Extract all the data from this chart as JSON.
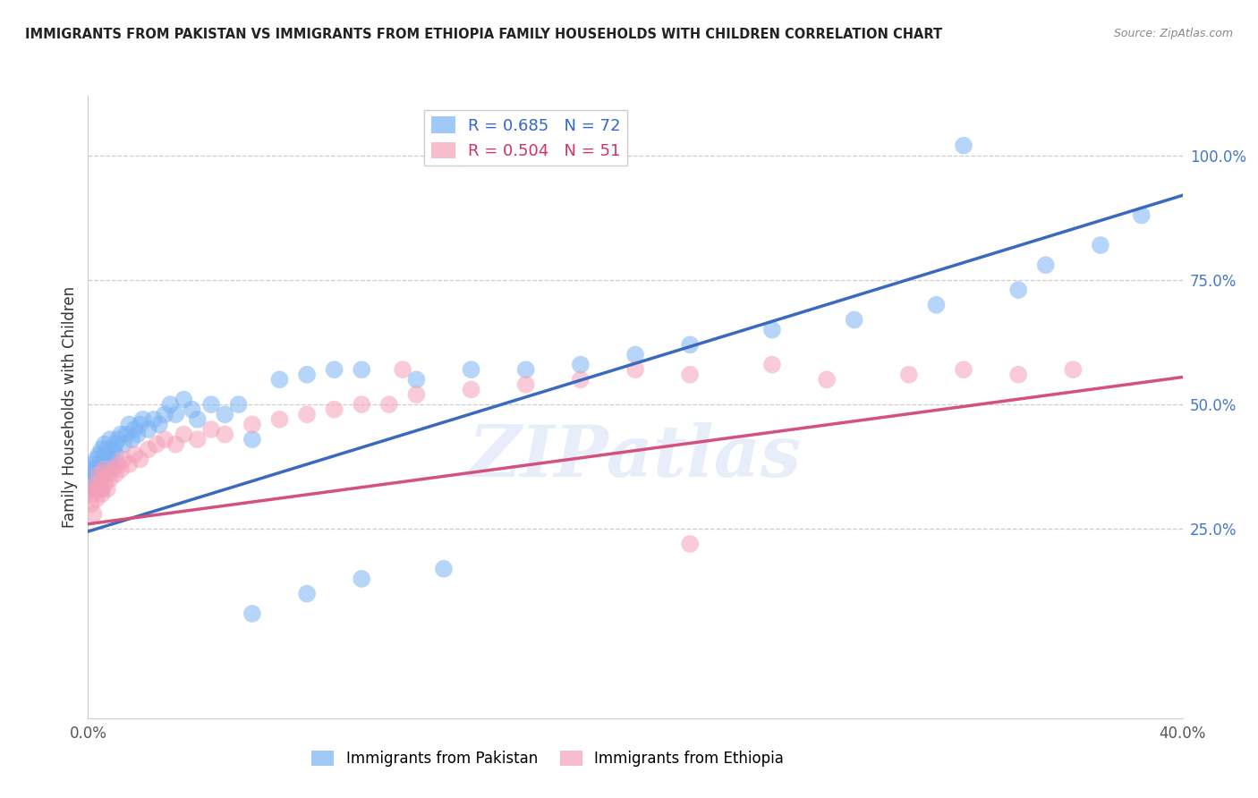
{
  "title": "IMMIGRANTS FROM PAKISTAN VS IMMIGRANTS FROM ETHIOPIA FAMILY HOUSEHOLDS WITH CHILDREN CORRELATION CHART",
  "source": "Source: ZipAtlas.com",
  "xlabel_pakistan": "Immigrants from Pakistan",
  "xlabel_ethiopia": "Immigrants from Ethiopia",
  "ylabel": "Family Households with Children",
  "xlim": [
    0.0,
    0.4
  ],
  "ylim": [
    -0.13,
    1.12
  ],
  "xticks": [
    0.0,
    0.08,
    0.16,
    0.24,
    0.32,
    0.4
  ],
  "xticklabels": [
    "0.0%",
    "",
    "",
    "",
    "",
    "40.0%"
  ],
  "yticks_right": [
    0.25,
    0.5,
    0.75,
    1.0
  ],
  "ytick_labels_right": [
    "25.0%",
    "50.0%",
    "75.0%",
    "100.0%"
  ],
  "pakistan_R": 0.685,
  "pakistan_N": 72,
  "ethiopia_R": 0.504,
  "ethiopia_N": 51,
  "pakistan_color": "#7ab3f5",
  "ethiopia_color": "#f5a0b8",
  "pakistan_line_color": "#3a6abf",
  "ethiopia_line_color": "#d45080",
  "watermark": "ZIPatlas",
  "pak_line_x0": 0.0,
  "pak_line_y0": 0.245,
  "pak_line_x1": 0.4,
  "pak_line_y1": 0.92,
  "eth_line_x0": 0.0,
  "eth_line_y0": 0.26,
  "eth_line_x1": 0.4,
  "eth_line_y1": 0.555,
  "pak_scatter_x": [
    0.001,
    0.001,
    0.002,
    0.002,
    0.002,
    0.003,
    0.003,
    0.003,
    0.004,
    0.004,
    0.004,
    0.005,
    0.005,
    0.005,
    0.005,
    0.006,
    0.006,
    0.006,
    0.007,
    0.007,
    0.008,
    0.008,
    0.008,
    0.009,
    0.009,
    0.01,
    0.01,
    0.011,
    0.012,
    0.013,
    0.014,
    0.015,
    0.016,
    0.017,
    0.018,
    0.019,
    0.02,
    0.022,
    0.024,
    0.026,
    0.028,
    0.03,
    0.032,
    0.035,
    0.038,
    0.04,
    0.045,
    0.05,
    0.055,
    0.06,
    0.07,
    0.08,
    0.09,
    0.1,
    0.12,
    0.14,
    0.16,
    0.18,
    0.2,
    0.22,
    0.25,
    0.28,
    0.31,
    0.32,
    0.34,
    0.35,
    0.37,
    0.385,
    0.06,
    0.08,
    0.1,
    0.13
  ],
  "pak_scatter_y": [
    0.34,
    0.37,
    0.35,
    0.38,
    0.33,
    0.36,
    0.39,
    0.37,
    0.35,
    0.4,
    0.38,
    0.36,
    0.41,
    0.38,
    0.33,
    0.4,
    0.37,
    0.42,
    0.38,
    0.41,
    0.39,
    0.43,
    0.37,
    0.41,
    0.38,
    0.42,
    0.4,
    0.43,
    0.44,
    0.42,
    0.44,
    0.46,
    0.43,
    0.45,
    0.44,
    0.46,
    0.47,
    0.45,
    0.47,
    0.46,
    0.48,
    0.5,
    0.48,
    0.51,
    0.49,
    0.47,
    0.5,
    0.48,
    0.5,
    0.43,
    0.55,
    0.56,
    0.57,
    0.57,
    0.55,
    0.57,
    0.57,
    0.58,
    0.6,
    0.62,
    0.65,
    0.67,
    0.7,
    1.02,
    0.73,
    0.78,
    0.82,
    0.88,
    0.08,
    0.12,
    0.15,
    0.17
  ],
  "eth_scatter_x": [
    0.001,
    0.001,
    0.002,
    0.002,
    0.003,
    0.003,
    0.004,
    0.004,
    0.005,
    0.005,
    0.006,
    0.006,
    0.007,
    0.007,
    0.008,
    0.009,
    0.01,
    0.011,
    0.012,
    0.013,
    0.015,
    0.017,
    0.019,
    0.022,
    0.025,
    0.028,
    0.032,
    0.035,
    0.04,
    0.045,
    0.05,
    0.06,
    0.07,
    0.08,
    0.09,
    0.1,
    0.11,
    0.12,
    0.14,
    0.16,
    0.18,
    0.2,
    0.22,
    0.25,
    0.27,
    0.3,
    0.32,
    0.34,
    0.36,
    0.22,
    0.115
  ],
  "eth_scatter_y": [
    0.3,
    0.33,
    0.28,
    0.32,
    0.31,
    0.34,
    0.33,
    0.36,
    0.32,
    0.35,
    0.34,
    0.37,
    0.33,
    0.36,
    0.35,
    0.37,
    0.36,
    0.38,
    0.37,
    0.39,
    0.38,
    0.4,
    0.39,
    0.41,
    0.42,
    0.43,
    0.42,
    0.44,
    0.43,
    0.45,
    0.44,
    0.46,
    0.47,
    0.48,
    0.49,
    0.5,
    0.5,
    0.52,
    0.53,
    0.54,
    0.55,
    0.57,
    0.56,
    0.58,
    0.55,
    0.56,
    0.57,
    0.56,
    0.57,
    0.22,
    0.57
  ]
}
